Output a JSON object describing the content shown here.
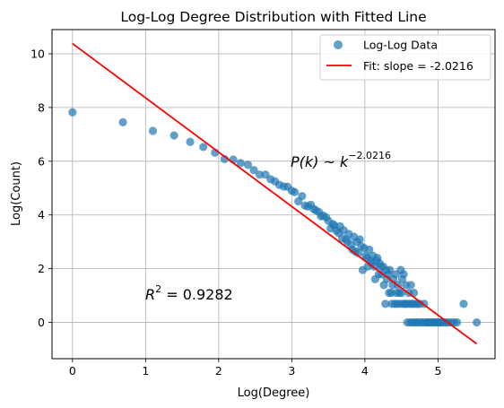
{
  "chart_data": {
    "type": "scatter",
    "title": "Log-Log Degree Distribution with Fitted Line",
    "xlabel": "Log(Degree)",
    "ylabel": "Log(Count)",
    "xlim": [
      -0.28,
      5.78
    ],
    "ylim": [
      -1.35,
      10.9
    ],
    "grid": true,
    "legend_position": "top-right",
    "x_ticks": [
      0,
      1,
      2,
      3,
      4,
      5
    ],
    "y_ticks": [
      0,
      2,
      4,
      6,
      8,
      10
    ],
    "x_tick_labels": [
      "0",
      "1",
      "2",
      "3",
      "4",
      "5"
    ],
    "y_tick_labels": [
      "0",
      "2",
      "4",
      "6",
      "8",
      "10"
    ],
    "series": [
      {
        "name": "Log-Log Data",
        "kind": "scatter",
        "color": "#1f77b4",
        "points": [
          [
            0.0,
            7.82
          ],
          [
            0.69,
            7.45
          ],
          [
            1.1,
            7.13
          ],
          [
            1.39,
            6.96
          ],
          [
            1.61,
            6.72
          ],
          [
            1.79,
            6.53
          ],
          [
            1.95,
            6.32
          ],
          [
            2.08,
            6.08
          ],
          [
            2.2,
            6.06
          ],
          [
            2.3,
            5.93
          ],
          [
            2.4,
            5.87
          ],
          [
            2.48,
            5.67
          ],
          [
            2.56,
            5.5
          ],
          [
            2.64,
            5.5
          ],
          [
            2.71,
            5.33
          ],
          [
            2.77,
            5.25
          ],
          [
            2.83,
            5.12
          ],
          [
            2.89,
            5.06
          ],
          [
            2.94,
            5.05
          ],
          [
            3.0,
            4.9
          ],
          [
            3.04,
            4.85
          ],
          [
            3.09,
            4.51
          ],
          [
            3.14,
            4.7
          ],
          [
            3.18,
            4.35
          ],
          [
            3.22,
            4.31
          ],
          [
            3.26,
            4.38
          ],
          [
            3.3,
            4.22
          ],
          [
            3.33,
            4.17
          ],
          [
            3.37,
            4.11
          ],
          [
            3.4,
            3.95
          ],
          [
            3.43,
            3.98
          ],
          [
            3.47,
            3.91
          ],
          [
            3.5,
            3.78
          ],
          [
            3.53,
            3.5
          ],
          [
            3.56,
            3.66
          ],
          [
            3.58,
            3.61
          ],
          [
            3.61,
            3.42
          ],
          [
            3.64,
            3.33
          ],
          [
            3.66,
            3.58
          ],
          [
            3.69,
            3.13
          ],
          [
            3.71,
            3.43
          ],
          [
            3.74,
            3.09
          ],
          [
            3.76,
            3.0
          ],
          [
            3.78,
            3.29
          ],
          [
            3.81,
            2.89
          ],
          [
            3.83,
            2.71
          ],
          [
            3.85,
            3.19
          ],
          [
            3.87,
            2.64
          ],
          [
            3.89,
            3.0
          ],
          [
            3.91,
            2.58
          ],
          [
            3.93,
            3.09
          ],
          [
            3.95,
            2.83
          ],
          [
            3.97,
            1.95
          ],
          [
            3.99,
            2.77
          ],
          [
            4.01,
            2.48
          ],
          [
            4.03,
            2.4
          ],
          [
            4.04,
            2.08
          ],
          [
            4.06,
            2.71
          ],
          [
            4.08,
            2.3
          ],
          [
            4.09,
            2.2
          ],
          [
            4.11,
            2.48
          ],
          [
            4.13,
            2.08
          ],
          [
            4.14,
            1.61
          ],
          [
            4.16,
            2.3
          ],
          [
            4.17,
            2.4
          ],
          [
            4.19,
            1.79
          ],
          [
            4.2,
            2.2
          ],
          [
            4.22,
            2.08
          ],
          [
            4.23,
            1.79
          ],
          [
            4.25,
            2.08
          ],
          [
            4.26,
            1.39
          ],
          [
            4.28,
            0.69
          ],
          [
            4.29,
            1.95
          ],
          [
            4.3,
            1.61
          ],
          [
            4.32,
            1.79
          ],
          [
            4.33,
            1.1
          ],
          [
            4.34,
            1.95
          ],
          [
            4.36,
            1.1
          ],
          [
            4.37,
            0.69
          ],
          [
            4.38,
            1.39
          ],
          [
            4.39,
            1.61
          ],
          [
            4.41,
            0.69
          ],
          [
            4.42,
            1.79
          ],
          [
            4.43,
            1.1
          ],
          [
            4.44,
            0.69
          ],
          [
            4.45,
            1.39
          ],
          [
            4.47,
            1.1
          ],
          [
            4.48,
            0.69
          ],
          [
            4.49,
            1.95
          ],
          [
            4.5,
            1.1
          ],
          [
            4.51,
            1.61
          ],
          [
            4.52,
            0.69
          ],
          [
            4.53,
            1.79
          ],
          [
            4.55,
            0.69
          ],
          [
            4.56,
            1.39
          ],
          [
            4.57,
            0.69
          ],
          [
            4.58,
            0.0
          ],
          [
            4.6,
            1.1
          ],
          [
            4.61,
            0.69
          ],
          [
            4.62,
            0.0
          ],
          [
            4.63,
            1.39
          ],
          [
            4.64,
            0.69
          ],
          [
            4.65,
            0.0
          ],
          [
            4.66,
            0.69
          ],
          [
            4.67,
            1.1
          ],
          [
            4.68,
            0.0
          ],
          [
            4.7,
            0.69
          ],
          [
            4.71,
            0.0
          ],
          [
            4.72,
            0.69
          ],
          [
            4.73,
            0.0
          ],
          [
            4.75,
            0.69
          ],
          [
            4.77,
            0.0
          ],
          [
            4.79,
            0.0
          ],
          [
            4.81,
            0.69
          ],
          [
            4.83,
            0.0
          ],
          [
            4.85,
            0.0
          ],
          [
            4.87,
            0.0
          ],
          [
            4.89,
            0.0
          ],
          [
            4.91,
            0.0
          ],
          [
            4.93,
            0.0
          ],
          [
            4.95,
            0.0
          ],
          [
            4.97,
            0.0
          ],
          [
            4.99,
            0.0
          ],
          [
            5.01,
            0.0
          ],
          [
            5.03,
            0.0
          ],
          [
            5.05,
            0.0
          ],
          [
            5.08,
            0.0
          ],
          [
            5.11,
            0.0
          ],
          [
            5.14,
            0.0
          ],
          [
            5.18,
            0.0
          ],
          [
            5.22,
            0.0
          ],
          [
            5.26,
            0.0
          ],
          [
            5.35,
            0.69
          ],
          [
            5.53,
            0.0
          ]
        ]
      },
      {
        "name": "Fit: slope = -2.0216",
        "kind": "line",
        "color": "#ff0000",
        "slope": -2.0216,
        "intercept": 10.38,
        "x_range": [
          0,
          5.53
        ]
      }
    ],
    "annotations": [
      {
        "text_main": "P(k) ~ k",
        "text_sup": "−2.0216"
      },
      {
        "text_main": "R",
        "text_sup": "2",
        "text_tail": " = 0.9282"
      }
    ]
  }
}
